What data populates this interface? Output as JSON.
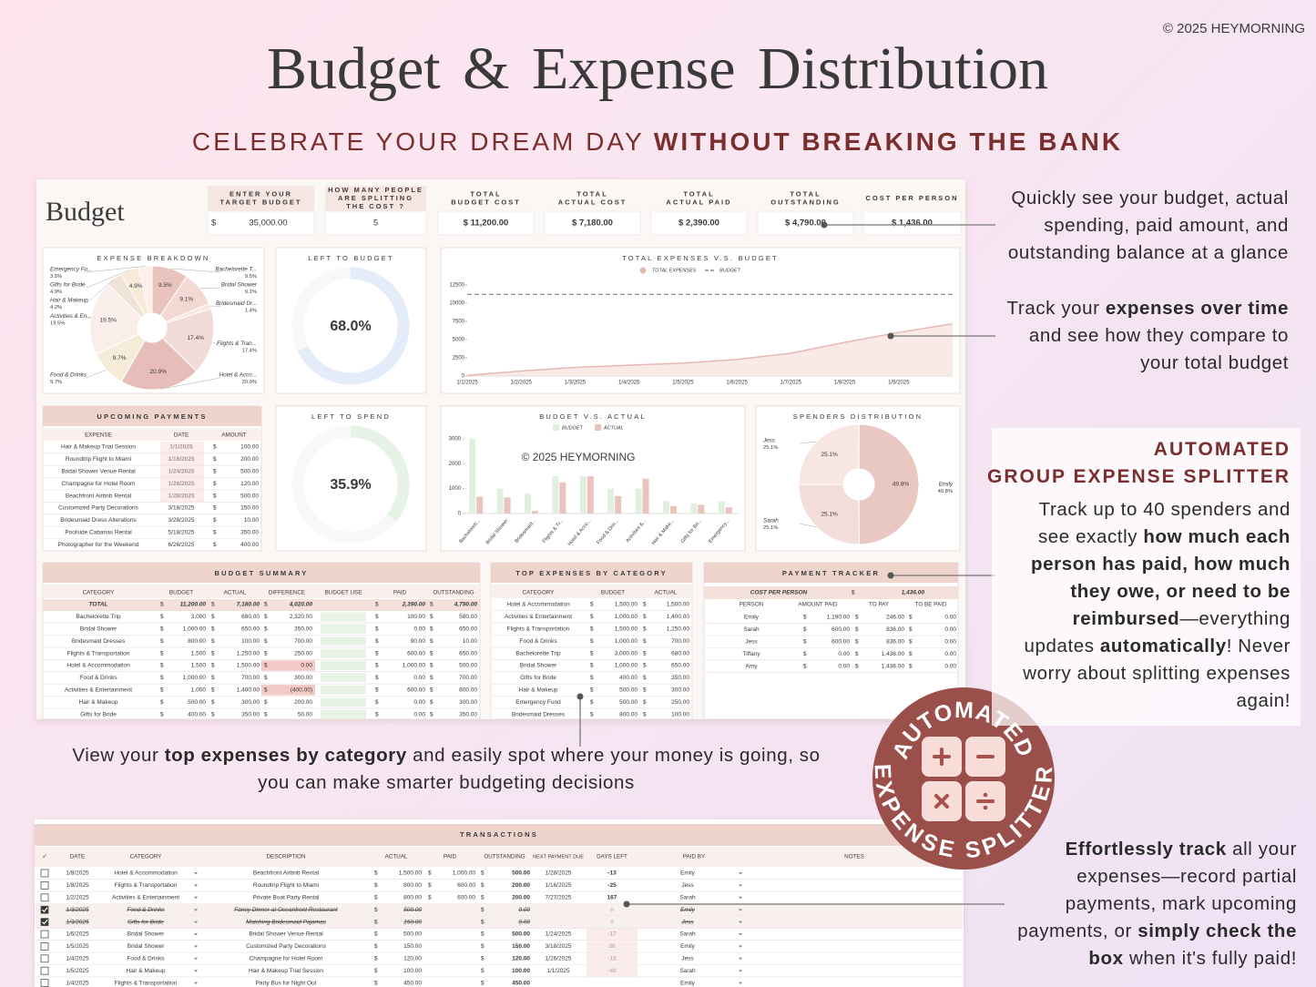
{
  "header": {
    "copyright": "© 2025 HEYMORNING",
    "title": "Budget & Expense Distribution",
    "subtitle": {
      "plain": "CELEBRATE YOUR DREAM DAY ",
      "bold": "WITHOUT BREAKING THE BANK"
    }
  },
  "dashboard": {
    "heading": "Budget",
    "currency": "$",
    "cards": [
      {
        "label": [
          "ENTER YOUR",
          "TARGET BUDGET"
        ],
        "prefix": "$",
        "value": "35,000.00"
      },
      {
        "label": [
          "HOW MANY PEOPLE",
          "ARE SPLITTING",
          "THE COST ?"
        ],
        "value": "5"
      },
      {
        "label": [
          "TOTAL",
          "BUDGET COST"
        ],
        "value": "$ 11,200.00"
      },
      {
        "label": [
          "TOTAL",
          "ACTUAL COST"
        ],
        "value": "$ 7,180.00"
      },
      {
        "label": [
          "TOTAL",
          "ACTUAL PAID"
        ],
        "value": "$ 2,390.00"
      },
      {
        "label": [
          "TOTAL",
          "OUTSTANDING"
        ],
        "value": "$ 4,790.00",
        "color": "#c0392b"
      },
      {
        "label": [
          "COST PER PERSON"
        ],
        "value": "$ 1,436.00"
      }
    ],
    "expense_breakdown": {
      "title": "EXPENSE BREAKDOWN",
      "chart": {
        "type": "pie",
        "categories": [
          "Bachelorette T...",
          "Bridal Shower",
          "Bridesmaid Dr...",
          "Flights & Tran...",
          "Hotel & Acco...",
          "Food & Drinks",
          "Activities & En...",
          "Hair & Makeup",
          "Gifts for Bride",
          "Emergency Fu..."
        ],
        "values": [
          9.5,
          9.1,
          1.4,
          17.4,
          20.9,
          9.7,
          19.5,
          4.2,
          4.9,
          3.5
        ],
        "value_labels": [
          "9.5%",
          "9.1%",
          "1.4%",
          "17.4%",
          "20.9%",
          "9.7%",
          "19.5%",
          "4.2%",
          "4.9%",
          "3.5%"
        ],
        "colors": [
          "#e9c4bf",
          "#f3d9d4",
          "#f8e7e2",
          "#f2dcd7",
          "#e6bdb8",
          "#f5ecd8",
          "#faeeeb",
          "#efe3d8",
          "#f7ead9",
          "#fbefea"
        ]
      }
    },
    "left_to_budget": {
      "title": "LEFT TO BUDGET",
      "chart": {
        "type": "donut",
        "value": 68,
        "value_label": "68.0%",
        "color": "#e3ecf8"
      }
    },
    "left_to_spend": {
      "title": "LEFT TO SPEND",
      "chart": {
        "type": "donut",
        "value": 35.9,
        "value_label": "35.9%",
        "color": "#e6f2e6"
      }
    },
    "expenses_vs_budget": {
      "title": "TOTAL EXPENSES V.S. BUDGET",
      "chart": {
        "type": "line",
        "categories": [
          "1/1/2025",
          "1/2/2025",
          "1/3/2025",
          "1/4/2025",
          "1/5/2025",
          "1/6/2025",
          "1/7/2025",
          "1/8/2025",
          "1/9/2025",
          null
        ],
        "series": [
          {
            "name": "TOTAL EXPENSES",
            "color": "#e6b8b4",
            "fill": "#f5dcd8",
            "values": [
              100,
              680,
              1180,
              1480,
              1780,
              2280,
              3130,
              4630,
              5980,
              7180
            ]
          },
          {
            "name": "BUDGET",
            "color": "#8c8c8c",
            "dashed": true,
            "values": [
              11200,
              11200,
              11200,
              11200,
              11200,
              11200,
              11200,
              11200,
              11200,
              11200
            ]
          }
        ],
        "ylim": [
          0,
          12500
        ],
        "yticks": [
          0,
          2500,
          5000,
          7500,
          10000,
          12500
        ]
      }
    },
    "budget_vs_actual": {
      "title": "BUDGET V.S. ACTUAL",
      "chart": {
        "type": "bar",
        "categories": [
          "Bachelorett...",
          "Bridal Shower",
          "Bridesmaid...",
          "Flights & Tr...",
          "Hotel & Acco...",
          "Food & Drin...",
          "Activities &...",
          "Hair & Make...",
          "Gifts for Bri...",
          "Emergency..."
        ],
        "series": [
          {
            "name": "BUDGET",
            "color": "#dff0df",
            "values": [
              3000,
              1000,
              800,
              1500,
              1500,
              1000,
              1000,
              500,
              400,
              500
            ]
          },
          {
            "name": "ACTUAL",
            "color": "#e9c3be",
            "values": [
              680,
              650,
              100,
              1250,
              1500,
              700,
              1400,
              300,
              350,
              250
            ]
          }
        ],
        "ylim": [
          0,
          3000
        ],
        "yticks": [
          0,
          1000,
          2000,
          3000
        ]
      }
    },
    "spenders_distribution": {
      "title": "SPENDERS DISTRIBUTION",
      "chart": {
        "type": "pie",
        "categories": [
          "Jess",
          "Emily",
          "Sarah"
        ],
        "values": [
          25.1,
          49.8,
          25.1
        ],
        "value_labels": [
          "25.1%",
          "49.8%",
          "25.1%"
        ],
        "colors": [
          "#f7e6e2",
          "#eac8c2",
          "#f3ddd8"
        ]
      }
    },
    "upcoming_payments": {
      "title": "UPCOMING PAYMENTS",
      "headers": [
        "EXPENSE",
        "DATE",
        "AMOUNT"
      ],
      "rows": [
        [
          "Hair & Makeup Trial Session",
          "1/1/2025",
          "100.00"
        ],
        [
          "Roundtrip Flight to Miami",
          "1/16/2025",
          "200.00"
        ],
        [
          "Bridal Shower Venue Rental",
          "1/24/2025",
          "500.00"
        ],
        [
          "Champagne for Hotel Room",
          "1/26/2025",
          "120.00"
        ],
        [
          "Beachfront Airbnb Rental",
          "1/28/2025",
          "500.00"
        ],
        [
          "Customized Party Decorations",
          "3/18/2025",
          "150.00"
        ],
        [
          "Bridesmaid Dress Alterations",
          "3/28/2025",
          "10.00"
        ],
        [
          "Poolside Cabanas Rental",
          "5/18/2025",
          "350.00"
        ],
        [
          "Photographer for the Weekend",
          "6/26/2025",
          "400.00"
        ]
      ]
    },
    "budget_summary": {
      "title": "BUDGET SUMMARY",
      "headers": [
        "CATEGORY",
        "BUDGET",
        "ACTUAL",
        "DIFFERENCE",
        "BUDGET USE",
        "PAID",
        "OUTSTANDING"
      ],
      "rows": [
        [
          "TOTAL",
          "11,200.00",
          "7,180.00",
          "4,020.00",
          "2,390.00",
          "4,790.00"
        ],
        [
          "Bachelorette Trip",
          "3,000",
          "680.00",
          "2,320.00",
          "100.00",
          "580.00"
        ],
        [
          "Bridal Shower",
          "1,000.00",
          "650.00",
          "350.00",
          "0.00",
          "650.00"
        ],
        [
          "Bridesmaid Dresses",
          "800.00",
          "100.00",
          "700.00",
          "90.00",
          "10.00"
        ],
        [
          "Flights & Transportation",
          "1,500",
          "1,250.00",
          "250.00",
          "600.00",
          "650.00"
        ],
        [
          "Hotel & Accommodation",
          "1,500",
          "1,500.00",
          "0.00",
          "1,000.00",
          "500.00"
        ],
        [
          "Food & Drinks",
          "1,000.00",
          "700.00",
          "300.00",
          "0.00",
          "700.00"
        ],
        [
          "Activities & Entertainment",
          "1,000",
          "1,400.00",
          "(400.00)",
          "600.00",
          "800.00"
        ],
        [
          "Hair & Makeup",
          "500.00",
          "300.00",
          "200.00",
          "0.00",
          "300.00"
        ],
        [
          "Gifts for Bride",
          "400.00",
          "350.00",
          "50.00",
          "0.00",
          "350.00"
        ]
      ]
    },
    "top_expenses": {
      "title": "TOP EXPENSES BY CATEGORY",
      "headers": [
        "CATEGORY",
        "BUDGET",
        "ACTUAL"
      ],
      "rows": [
        [
          "Hotel & Accommodation",
          "1,500.00",
          "1,500.00"
        ],
        [
          "Activities & Entertainment",
          "1,000.00",
          "1,400.00"
        ],
        [
          "Flights & Transportation",
          "1,500.00",
          "1,250.00"
        ],
        [
          "Food & Drinks",
          "1,000.00",
          "700.00"
        ],
        [
          "Bachelorette Trip",
          "3,000.00",
          "680.00"
        ],
        [
          "Bridal Shower",
          "1,000.00",
          "650.00"
        ],
        [
          "Gifts for Bride",
          "400.00",
          "350.00"
        ],
        [
          "Hair & Makeup",
          "500.00",
          "300.00"
        ],
        [
          "Emergency Fund",
          "500.00",
          "250.00"
        ],
        [
          "Bridesmaid Dresses",
          "800.00",
          "100.00"
        ]
      ]
    },
    "payment_tracker": {
      "title": "PAYMENT TRACKER",
      "cost_per_person_label": "COST PER PERSON",
      "cost_per_person": "1,436.00",
      "headers": [
        "PERSON",
        "AMOUNT PAID",
        "TO PAY",
        "TO BE PAID"
      ],
      "rows": [
        [
          "Emily",
          "1,190.00",
          "246.00",
          "0.00"
        ],
        [
          "Sarah",
          "600.00",
          "836.00",
          "0.00"
        ],
        [
          "Jess",
          "600.00",
          "836.00",
          "0.00"
        ],
        [
          "Tiffany",
          "0.00",
          "1,436.00",
          "0.00"
        ],
        [
          "Amy",
          "0.00",
          "1,436.00",
          "0.00"
        ]
      ]
    }
  },
  "callouts": [
    {
      "lines": [
        [
          {
            "text": "Quickly see your budget, actual"
          }
        ],
        [
          {
            "text": "spending, paid amount, and"
          }
        ],
        [
          {
            "text": "outstanding balance at a glance"
          }
        ]
      ]
    },
    {
      "lines": [
        [
          {
            "text": "Track your "
          },
          {
            "text": "expenses over time",
            "bold": true
          }
        ],
        [
          {
            "text": "and see how they compare to"
          }
        ],
        [
          {
            "text": "your total budget"
          }
        ]
      ]
    },
    {
      "title": [
        [
          {
            "text": "AUTOMATED"
          }
        ],
        [
          {
            "text": "GROUP EXPENSE SPLITTER"
          }
        ]
      ],
      "lines": [
        [
          {
            "text": "Track up to 40 spenders and"
          }
        ],
        [
          {
            "text": "see exactly "
          },
          {
            "text": "how much each",
            "bold": true
          }
        ],
        [
          {
            "text": "person has paid, how much",
            "bold": true
          }
        ],
        [
          {
            "text": "they owe, or need to be",
            "bold": true
          }
        ],
        [
          {
            "text": "reimbursed",
            "bold": true
          },
          {
            "text": "—everything"
          }
        ],
        [
          {
            "text": "updates "
          },
          {
            "text": "automatically",
            "bold": true
          },
          {
            "text": "! Never"
          }
        ],
        [
          {
            "text": "worry about splitting expenses"
          }
        ],
        [
          {
            "text": "again!"
          }
        ]
      ]
    },
    {
      "lines": [
        [
          {
            "text": "View your "
          },
          {
            "text": "top expenses by category",
            "bold": true
          },
          {
            "text": " and easily spot where your money is going, so"
          }
        ],
        [
          {
            "text": "you can make smarter budgeting decisions"
          }
        ]
      ]
    },
    {
      "lines": [
        [
          {
            "text": "Effortlessly track",
            "bold": true
          },
          {
            "text": " all your"
          }
        ],
        [
          {
            "text": "expenses—record partial"
          }
        ],
        [
          {
            "text": "payments, mark upcoming"
          }
        ],
        [
          {
            "text": "payments, or "
          },
          {
            "text": "simply check the",
            "bold": true
          }
        ],
        [
          {
            "text": "box",
            "bold": true
          },
          {
            "text": " when it's fully paid!"
          }
        ]
      ]
    }
  ],
  "badge": {
    "top": "AUTOMATED",
    "bottom": "EXPENSE SPLITTER"
  },
  "transactions": {
    "title": "TRANSACTIONS",
    "headers": [
      "✓",
      "DATE",
      "CATEGORY",
      "DESCRIPTION",
      "ACTUAL",
      "PAID",
      "OUTSTANDING",
      "NEXT PAYMENT DUE",
      "DAYS LEFT",
      "PAID BY",
      "NOTES"
    ],
    "rows": [
      {
        "checked": false,
        "cells": [
          "1/8/2025",
          "Hotel & Accommodation",
          "Beachfront Airbnb Rental",
          "1,500.00",
          "1,000.00",
          "500.00",
          "1/28/2025",
          -13,
          "Emily"
        ]
      },
      {
        "checked": false,
        "cells": [
          "1/8/2025",
          "Flights & Transportation",
          "Roundtrip Flight to Miami",
          "800.00",
          "600.00",
          "200.00",
          "1/16/2025",
          -25,
          "Jess"
        ]
      },
      {
        "checked": false,
        "cells": [
          "1/2/2025",
          "Activities & Entertainment",
          "Private Boat Party Rental",
          "800.00",
          "600.00",
          "200.00",
          "7/27/2025",
          167,
          "Sarah"
        ]
      },
      {
        "checked": true,
        "cells": [
          "1/3/2025",
          "Food & Drinks",
          "Fancy Dinner at Oceanfront Restaurant",
          "500.00",
          null,
          "0.00",
          null,
          0,
          "Emily"
        ]
      },
      {
        "checked": true,
        "cells": [
          "1/3/2025",
          "Gifts for Bride",
          "Matching Bridesmaid Pajamas",
          "150.00",
          null,
          "0.00",
          null,
          0,
          "Jess"
        ]
      },
      {
        "checked": false,
        "cells": [
          "1/6/2025",
          "Bridal Shower",
          "Bridal Shower Venue Rental",
          "500.00",
          null,
          "500.00",
          "1/24/2025",
          -17,
          "Sarah"
        ]
      },
      {
        "checked": false,
        "cells": [
          "1/5/2025",
          "Bridal Shower",
          "Customized Party Decorations",
          "150.00",
          null,
          "150.00",
          "3/18/2025",
          36,
          "Emily"
        ]
      },
      {
        "checked": false,
        "cells": [
          "1/4/2025",
          "Food & Drinks",
          "Champagne for Hotel Room",
          "120.00",
          null,
          "120.00",
          "1/26/2025",
          -15,
          "Jess"
        ]
      },
      {
        "checked": false,
        "cells": [
          "1/5/2025",
          "Hair & Makeup",
          "Hair & Makeup Trial Session",
          "100.00",
          null,
          "100.00",
          "1/1/2025",
          -40,
          "Sarah"
        ]
      },
      {
        "checked": false,
        "cells": [
          "1/4/2025",
          "Flights & Transportation",
          "Party Bus for Night Out",
          "450.00",
          null,
          "450.00",
          null,
          null,
          "Emily"
        ]
      }
    ]
  }
}
